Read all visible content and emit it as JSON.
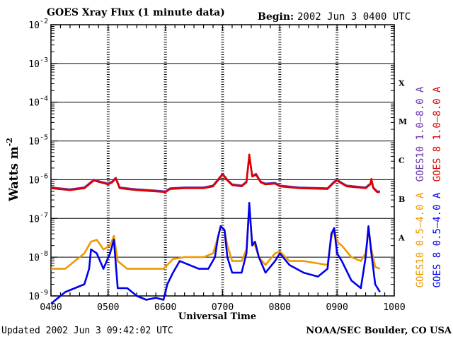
{
  "header": {
    "title": "GOES Xray Flux (1 minute data)",
    "begin_label": "Begin:",
    "begin_value": "2002 Jun 3 0400 UTC"
  },
  "footer": {
    "updated": "Updated 2002 Jun  3 09:42:02 UTC",
    "credit": "NOAA/SEC Boulder, CO USA"
  },
  "chart_data": {
    "type": "line",
    "title": "GOES Xray Flux (1 minute data)",
    "xlabel": "Universal Time",
    "ylabel": "Watts m",
    "ylabel_sup": "-2",
    "log_y": true,
    "xlim": [
      0,
      360
    ],
    "ylim_exp": [
      -9,
      -2
    ],
    "x_ticks": [
      {
        "t": 0,
        "label": "0400"
      },
      {
        "t": 60,
        "label": "0500"
      },
      {
        "t": 120,
        "label": "0600"
      },
      {
        "t": 180,
        "label": "0700"
      },
      {
        "t": 240,
        "label": "0800"
      },
      {
        "t": 300,
        "label": "0900"
      },
      {
        "t": 360,
        "label": "1000"
      }
    ],
    "y_ticks": [
      {
        "exp": -2,
        "base": "10",
        "sup": "-2"
      },
      {
        "exp": -3,
        "base": "10",
        "sup": "-3"
      },
      {
        "exp": -4,
        "base": "10",
        "sup": "-4"
      },
      {
        "exp": -5,
        "base": "10",
        "sup": "-5"
      },
      {
        "exp": -6,
        "base": "10",
        "sup": "-6"
      },
      {
        "exp": -7,
        "base": "10",
        "sup": "-7"
      },
      {
        "exp": -8,
        "base": "10",
        "sup": "-8"
      },
      {
        "exp": -9,
        "base": "10",
        "sup": "-9"
      }
    ],
    "flare_classes": [
      {
        "label": "X",
        "exp": -3.5
      },
      {
        "label": "M",
        "exp": -4.5
      },
      {
        "label": "C",
        "exp": -5.5
      },
      {
        "label": "B",
        "exp": -6.5
      },
      {
        "label": "A",
        "exp": -7.5
      }
    ],
    "colors": {
      "goes10_long": "#6633aa",
      "goes8_long": "#dd0000",
      "goes10_short": "#ee9900",
      "goes8_short": "#0000ee"
    },
    "legend": [
      {
        "id": "goes10_long",
        "label": "GOES10 1.0–8.0 A"
      },
      {
        "id": "goes8_long",
        "label": "GOES 8 1.0–8.0 A"
      },
      {
        "id": "goes10_short",
        "label": "GOES10 0.5–4.0 A"
      },
      {
        "id": "goes8_short",
        "label": "GOES 8 0.5–4.0 A"
      }
    ],
    "series": [
      {
        "name": "GOES10 1.0–8.0 A",
        "id": "goes10_long",
        "points": [
          [
            0,
            -6.2
          ],
          [
            20,
            -6.25
          ],
          [
            35,
            -6.2
          ],
          [
            45,
            -6.0
          ],
          [
            52,
            -6.05
          ],
          [
            60,
            -6.1
          ],
          [
            64,
            -6.05
          ],
          [
            68,
            -5.95
          ],
          [
            72,
            -6.2
          ],
          [
            90,
            -6.25
          ],
          [
            110,
            -6.28
          ],
          [
            120,
            -6.3
          ],
          [
            125,
            -6.22
          ],
          [
            140,
            -6.2
          ],
          [
            160,
            -6.2
          ],
          [
            170,
            -6.15
          ],
          [
            175,
            -6.0
          ],
          [
            180,
            -5.85
          ],
          [
            185,
            -6.0
          ],
          [
            190,
            -6.12
          ],
          [
            200,
            -6.15
          ],
          [
            205,
            -6.05
          ],
          [
            208,
            -5.4
          ],
          [
            211,
            -5.9
          ],
          [
            215,
            -5.85
          ],
          [
            220,
            -6.05
          ],
          [
            225,
            -6.1
          ],
          [
            235,
            -6.08
          ],
          [
            240,
            -6.15
          ],
          [
            260,
            -6.2
          ],
          [
            290,
            -6.22
          ],
          [
            297,
            -6.05
          ],
          [
            300,
            -6.0
          ],
          [
            303,
            -6.05
          ],
          [
            310,
            -6.15
          ],
          [
            330,
            -6.2
          ],
          [
            335,
            -6.1
          ],
          [
            336,
            -6.0
          ],
          [
            338,
            -6.2
          ],
          [
            342,
            -6.3
          ],
          [
            345,
            -6.3
          ]
        ]
      },
      {
        "name": "GOES 8 1.0–8.0 A",
        "id": "goes8_long",
        "points": [
          [
            0,
            -6.22
          ],
          [
            20,
            -6.27
          ],
          [
            35,
            -6.22
          ],
          [
            45,
            -6.02
          ],
          [
            52,
            -6.07
          ],
          [
            60,
            -6.12
          ],
          [
            64,
            -6.07
          ],
          [
            68,
            -5.97
          ],
          [
            72,
            -6.22
          ],
          [
            90,
            -6.27
          ],
          [
            110,
            -6.3
          ],
          [
            120,
            -6.32
          ],
          [
            125,
            -6.24
          ],
          [
            140,
            -6.22
          ],
          [
            160,
            -6.22
          ],
          [
            170,
            -6.17
          ],
          [
            175,
            -6.02
          ],
          [
            180,
            -5.87
          ],
          [
            185,
            -6.02
          ],
          [
            190,
            -6.14
          ],
          [
            200,
            -6.17
          ],
          [
            205,
            -6.07
          ],
          [
            208,
            -5.35
          ],
          [
            211,
            -5.92
          ],
          [
            215,
            -5.87
          ],
          [
            220,
            -6.07
          ],
          [
            225,
            -6.12
          ],
          [
            235,
            -6.1
          ],
          [
            240,
            -6.17
          ],
          [
            260,
            -6.22
          ],
          [
            290,
            -6.24
          ],
          [
            297,
            -6.07
          ],
          [
            300,
            -6.02
          ],
          [
            303,
            -6.07
          ],
          [
            310,
            -6.17
          ],
          [
            330,
            -6.22
          ],
          [
            335,
            -6.12
          ],
          [
            336,
            -5.98
          ],
          [
            338,
            -6.22
          ],
          [
            342,
            -6.32
          ],
          [
            345,
            -6.32
          ]
        ]
      },
      {
        "name": "GOES10 0.5–4.0 A",
        "id": "goes10_short",
        "points": [
          [
            0,
            -8.3
          ],
          [
            15,
            -8.3
          ],
          [
            25,
            -8.1
          ],
          [
            35,
            -7.9
          ],
          [
            42,
            -7.6
          ],
          [
            48,
            -7.55
          ],
          [
            55,
            -7.8
          ],
          [
            62,
            -7.7
          ],
          [
            66,
            -7.45
          ],
          [
            70,
            -8.1
          ],
          [
            80,
            -8.3
          ],
          [
            100,
            -8.3
          ],
          [
            118,
            -8.3
          ],
          [
            122,
            -8.2
          ],
          [
            128,
            -8.05
          ],
          [
            140,
            -8.0
          ],
          [
            150,
            -8.0
          ],
          [
            160,
            -8.0
          ],
          [
            170,
            -7.9
          ],
          [
            175,
            -7.5
          ],
          [
            178,
            -7.2
          ],
          [
            182,
            -7.3
          ],
          [
            185,
            -7.7
          ],
          [
            190,
            -8.1
          ],
          [
            200,
            -8.1
          ],
          [
            205,
            -7.8
          ],
          [
            208,
            -6.8
          ],
          [
            211,
            -7.6
          ],
          [
            214,
            -7.7
          ],
          [
            218,
            -8.0
          ],
          [
            225,
            -8.2
          ],
          [
            235,
            -7.9
          ],
          [
            240,
            -7.85
          ],
          [
            250,
            -8.1
          ],
          [
            265,
            -8.1
          ],
          [
            290,
            -8.2
          ],
          [
            294,
            -7.5
          ],
          [
            297,
            -7.3
          ],
          [
            300,
            -7.6
          ],
          [
            305,
            -7.7
          ],
          [
            315,
            -8.0
          ],
          [
            325,
            -8.1
          ],
          [
            330,
            -7.9
          ],
          [
            333,
            -7.3
          ],
          [
            336,
            -7.8
          ],
          [
            340,
            -8.25
          ],
          [
            345,
            -8.3
          ]
        ]
      },
      {
        "name": "GOES 8 0.5–4.0 A",
        "id": "goes8_short",
        "points": [
          [
            0,
            -9.2
          ],
          [
            15,
            -8.9
          ],
          [
            25,
            -8.8
          ],
          [
            35,
            -8.7
          ],
          [
            40,
            -8.3
          ],
          [
            42,
            -7.8
          ],
          [
            48,
            -7.9
          ],
          [
            55,
            -8.3
          ],
          [
            62,
            -7.9
          ],
          [
            66,
            -7.55
          ],
          [
            70,
            -8.8
          ],
          [
            80,
            -8.8
          ],
          [
            90,
            -9.0
          ],
          [
            100,
            -9.1
          ],
          [
            110,
            -9.05
          ],
          [
            118,
            -9.1
          ],
          [
            122,
            -8.7
          ],
          [
            128,
            -8.4
          ],
          [
            135,
            -8.1
          ],
          [
            145,
            -8.2
          ],
          [
            155,
            -8.3
          ],
          [
            165,
            -8.3
          ],
          [
            172,
            -8.0
          ],
          [
            175,
            -7.5
          ],
          [
            178,
            -7.2
          ],
          [
            182,
            -7.3
          ],
          [
            185,
            -8.0
          ],
          [
            190,
            -8.4
          ],
          [
            200,
            -8.4
          ],
          [
            205,
            -7.9
          ],
          [
            208,
            -6.6
          ],
          [
            211,
            -7.7
          ],
          [
            214,
            -7.6
          ],
          [
            218,
            -8.0
          ],
          [
            225,
            -8.4
          ],
          [
            235,
            -8.1
          ],
          [
            240,
            -7.9
          ],
          [
            250,
            -8.2
          ],
          [
            265,
            -8.4
          ],
          [
            280,
            -8.5
          ],
          [
            290,
            -8.3
          ],
          [
            294,
            -7.4
          ],
          [
            297,
            -7.25
          ],
          [
            300,
            -7.9
          ],
          [
            305,
            -8.1
          ],
          [
            315,
            -8.6
          ],
          [
            325,
            -8.8
          ],
          [
            330,
            -8.0
          ],
          [
            333,
            -7.2
          ],
          [
            336,
            -7.9
          ],
          [
            340,
            -8.7
          ],
          [
            345,
            -8.9
          ]
        ]
      }
    ]
  }
}
